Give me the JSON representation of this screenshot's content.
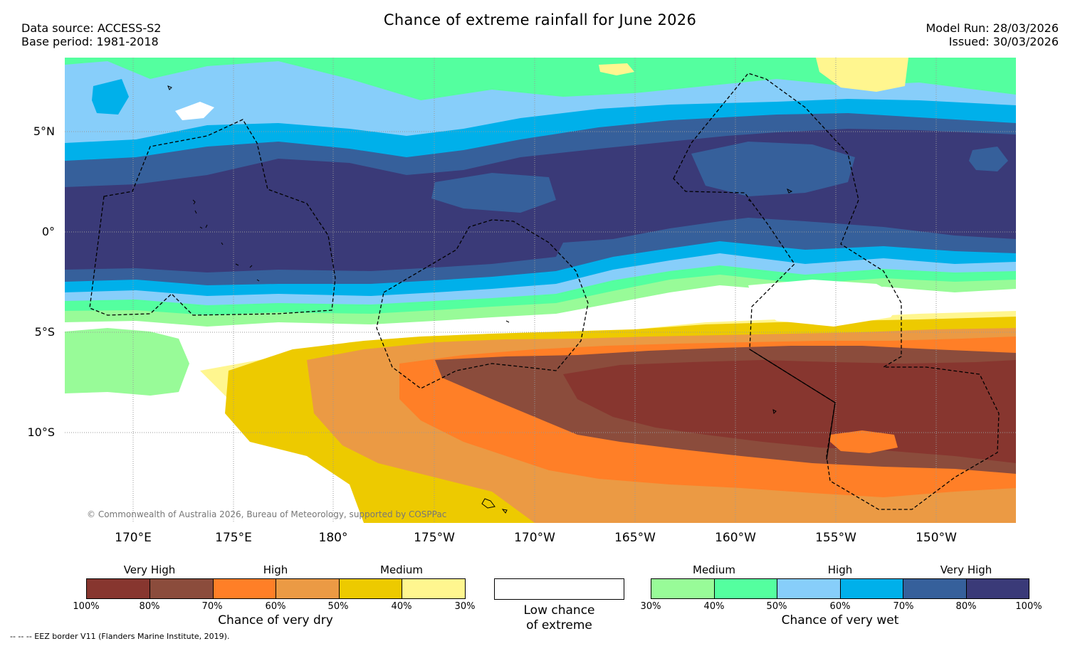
{
  "title": "Chance of extreme rainfall for June 2026",
  "source": {
    "data_source": "Data source: ACCESS-S2",
    "base_period": "Base period: 1981-2018"
  },
  "run": {
    "model_run": "Model Run: 28/03/2026",
    "issued": "Issued: 30/03/2026"
  },
  "axes": {
    "lat_labels": [
      "5°N",
      "0°",
      "5°S",
      "10°S"
    ],
    "lon_labels": [
      "170°E",
      "175°E",
      "180°",
      "175°W",
      "170°W",
      "165°W",
      "160°W",
      "155°W",
      "150°W"
    ]
  },
  "copyright": "© Commonwealth of Australia 2026, Bureau of Meteorology, supported by COSPPac",
  "colors": {
    "dry": [
      "#87362f",
      "#8b4c3c",
      "#ff7f27",
      "#eb9a44",
      "#edca00",
      "#fff68f"
    ],
    "wet": [
      "#98fb98",
      "#54ff9f",
      "#87cefa",
      "#00b0ea",
      "#36609b",
      "#3a3a78"
    ]
  },
  "legend_dry": {
    "title": "Chance of very dry",
    "headings": [
      "Very High",
      "High",
      "Medium"
    ],
    "ticks": [
      "100%",
      "80%",
      "70%",
      "60%",
      "50%",
      "40%",
      "30%"
    ]
  },
  "legend_low": {
    "line1": "Low chance",
    "line2": "of extreme"
  },
  "legend_wet": {
    "title": "Chance of very wet",
    "headings": [
      "Medium",
      "High",
      "Very High"
    ],
    "ticks": [
      "30%",
      "40%",
      "50%",
      "60%",
      "70%",
      "80%",
      "100%"
    ]
  },
  "footnote": "--  --  -- EEZ border V11 (Flanders Marine Institute, 2019)."
}
